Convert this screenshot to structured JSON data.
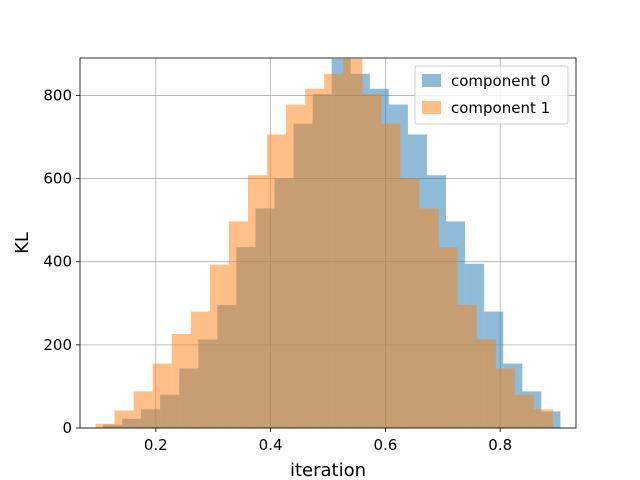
{
  "chart_data": {
    "type": "histogram",
    "title": "",
    "xlabel": "iteration",
    "ylabel": "KL",
    "xlim": [
      0.068,
      0.932
    ],
    "ylim": [
      0,
      890
    ],
    "xticks": [
      0.2,
      0.4,
      0.6,
      0.8
    ],
    "xtick_labels": [
      "0.2",
      "0.4",
      "0.6",
      "0.8"
    ],
    "yticks": [
      0,
      200,
      400,
      600,
      800
    ],
    "ytick_labels": [
      "0",
      "200",
      "400",
      "600",
      "800"
    ],
    "grid": true,
    "legend_position": "upper right",
    "series": [
      {
        "name": "component 0",
        "color": "#1f77b4",
        "opacity": 0.5,
        "bin_edges": [
          0.108,
          0.1412,
          0.1744,
          0.2076,
          0.2408,
          0.274,
          0.3072,
          0.3404,
          0.3736,
          0.4068,
          0.44,
          0.4732,
          0.5064,
          0.5396,
          0.5728,
          0.606,
          0.6392,
          0.6724,
          0.7056,
          0.7388,
          0.772,
          0.8052,
          0.8384,
          0.8716,
          0.9048
        ],
        "counts": [
          8,
          22,
          45,
          80,
          143,
          213,
          296,
          435,
          528,
          600,
          732,
          803,
          888,
          852,
          816,
          778,
          706,
          608,
          497,
          395,
          280,
          155,
          88,
          40
        ]
      },
      {
        "name": "component 1",
        "color": "#ff7f0e",
        "opacity": 0.5,
        "bin_edges": [
          0.095,
          0.1282,
          0.1614,
          0.1946,
          0.2278,
          0.261,
          0.2942,
          0.3274,
          0.3606,
          0.3938,
          0.427,
          0.4602,
          0.4934,
          0.5266,
          0.5598,
          0.593,
          0.6262,
          0.6594,
          0.6926,
          0.7258,
          0.759,
          0.7922,
          0.8254,
          0.8586,
          0.8918
        ],
        "counts": [
          10,
          42,
          88,
          155,
          226,
          280,
          393,
          497,
          608,
          706,
          778,
          816,
          852,
          888,
          803,
          732,
          600,
          528,
          435,
          296,
          213,
          143,
          80,
          45
        ]
      }
    ]
  }
}
